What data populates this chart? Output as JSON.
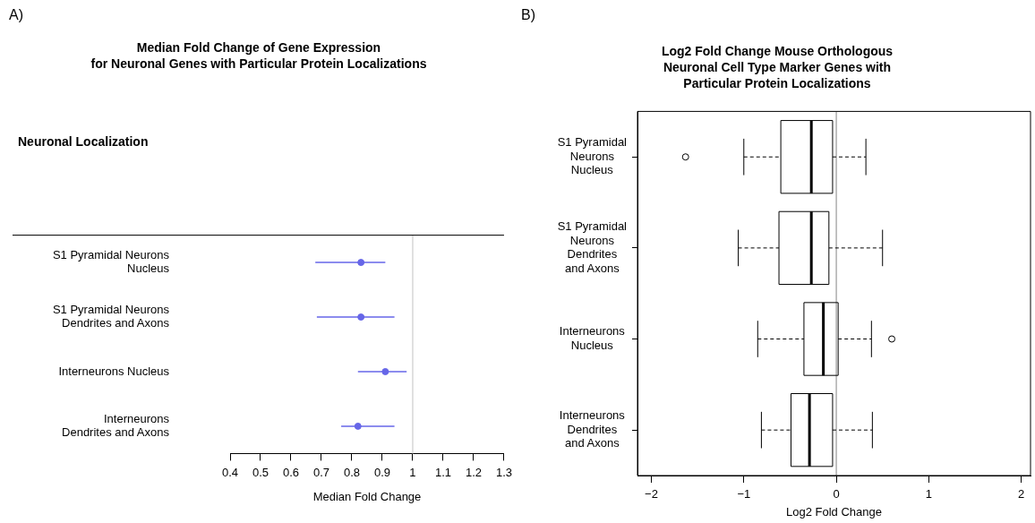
{
  "chart_data": [
    {
      "type": "scatter",
      "orientation": "horizontal",
      "title": "Median Fold Change of Gene Expression\nfor Neuronal Genes with Particular Protein Localizations",
      "categories": [
        "S1 Pyramidal Neurons\nNucleus",
        "S1 Pyramidal Neurons\nDendrites and Axons",
        "Interneurons Nucleus",
        "Interneurons\nDendrites and Axons"
      ],
      "values": [
        0.83,
        0.83,
        0.91,
        0.82
      ],
      "errors": [
        [
          0.68,
          0.91
        ],
        [
          0.685,
          0.94
        ],
        [
          0.82,
          0.98
        ],
        [
          0.765,
          0.94
        ]
      ],
      "color": "#6666e8",
      "marker": "circle",
      "xlim": [
        0.4,
        1.3
      ],
      "xticks": [
        0.4,
        0.5,
        0.6,
        0.7,
        0.8,
        0.9,
        1,
        1.1,
        1.2,
        1.3
      ],
      "xlabel": "Median Fold Change",
      "ref_lines": [
        {
          "axis": "x",
          "value": 1,
          "color": "#cccccc"
        }
      ],
      "annotations": [
        "A)",
        "Neuronal Localization"
      ]
    },
    {
      "type": "box",
      "orientation": "horizontal",
      "title": "Log2 Fold Change Mouse Orthologous\nNeuronal Cell Type Marker Genes with\nParticular Protein Localizations",
      "categories": [
        "S1 Pyramidal\nNeurons\nNucleus",
        "S1 Pyramidal\nNeurons\nDendrites\nand Axons",
        "Interneurons\nNucleus",
        "Interneurons\nDendrites\nand Axons"
      ],
      "boxes": [
        {
          "low": -1.0,
          "q1": -0.6,
          "median": -0.27,
          "q3": -0.04,
          "high": 0.32,
          "outliers": [
            -1.63
          ]
        },
        {
          "low": -1.06,
          "q1": -0.62,
          "median": -0.27,
          "q3": -0.08,
          "high": 0.5
        },
        {
          "low": -0.85,
          "q1": -0.35,
          "median": -0.14,
          "q3": 0.02,
          "high": 0.38,
          "outliers": [
            0.6
          ]
        },
        {
          "low": -0.81,
          "q1": -0.49,
          "median": -0.29,
          "q3": -0.04,
          "high": 0.39
        }
      ],
      "xlim": [
        -2.15,
        2.1
      ],
      "xticks": [
        {
          "value": -2,
          "label": "−2"
        },
        {
          "value": -1,
          "label": "−1"
        },
        0,
        1,
        2
      ],
      "xlabel": "Log2 Fold Change",
      "ref_lines": [
        {
          "axis": "x",
          "value": 0,
          "color": "#999999"
        }
      ],
      "annotations": [
        "B)"
      ]
    }
  ]
}
